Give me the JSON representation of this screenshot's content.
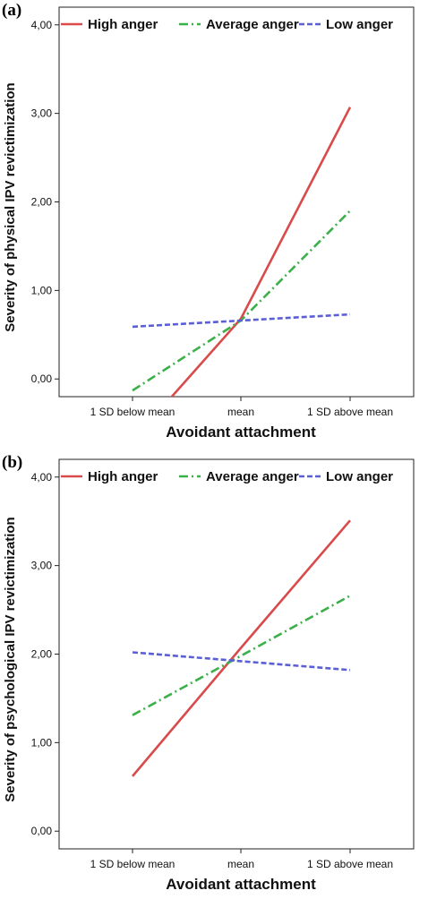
{
  "chart_data": [
    {
      "type": "line",
      "panel_label": "(a)",
      "xlabel": "Avoidant attachment",
      "ylabel": "Severity of physical IPV revictimization",
      "categories": [
        "1 SD below  mean",
        "mean",
        "1 SD above mean"
      ],
      "y_ticks": [
        "0,00",
        "1,00",
        "2,00",
        "3,00",
        "4,00"
      ],
      "ylim": [
        -0.2,
        4.2
      ],
      "legend_position": "top",
      "grid": false,
      "series": [
        {
          "name": "High anger",
          "color": "#d94b4b",
          "dash": "solid",
          "values": [
            -0.7,
            0.68,
            3.07
          ]
        },
        {
          "name": "Average anger",
          "color": "#3bb04a",
          "dash": "dashdot",
          "values": [
            -0.13,
            0.66,
            1.9
          ]
        },
        {
          "name": "Low anger",
          "color": "#5b5fd6",
          "dash": "dash",
          "values": [
            0.59,
            0.66,
            0.73
          ]
        }
      ]
    },
    {
      "type": "line",
      "panel_label": "(b)",
      "xlabel": "Avoidant attachment",
      "ylabel": "Severity of psychological IPV revictimization",
      "categories": [
        "1 SD below  mean",
        "mean",
        "1 SD above mean"
      ],
      "y_ticks": [
        "0,00",
        "1,00",
        "2,00",
        "3,00",
        "4,00"
      ],
      "ylim": [
        -0.2,
        4.2
      ],
      "legend_position": "top",
      "grid": false,
      "series": [
        {
          "name": "High anger",
          "color": "#d94b4b",
          "dash": "solid",
          "values": [
            0.62,
            2.07,
            3.51
          ]
        },
        {
          "name": "Average anger",
          "color": "#3bb04a",
          "dash": "dashdot",
          "values": [
            1.31,
            1.98,
            2.66
          ]
        },
        {
          "name": "Low anger",
          "color": "#5b5fd6",
          "dash": "dash",
          "values": [
            2.02,
            1.92,
            1.82
          ]
        }
      ]
    }
  ]
}
